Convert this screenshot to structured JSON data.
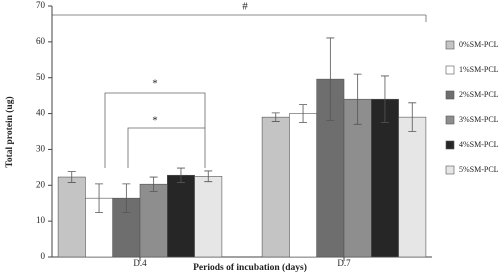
{
  "chart_data": {
    "type": "bar",
    "categories": [
      "D.4",
      "D.7"
    ],
    "x_label": "Periods of incubation (days)",
    "y_label": "Total protein (ug)",
    "ylim": [
      0,
      70
    ],
    "yticks": [
      0,
      10,
      20,
      30,
      40,
      50,
      60,
      70
    ],
    "legend": "right",
    "series": [
      {
        "name": "0%SM-PCL",
        "color": "#c4c4c4",
        "values": [
          22.3,
          39
        ],
        "errors": [
          1.5,
          1.2
        ]
      },
      {
        "name": "1%SM-PCL",
        "color": "#ffffff",
        "values": [
          16.4,
          40
        ],
        "errors": [
          4,
          2.5
        ]
      },
      {
        "name": "2%SM-PCL",
        "color": "#6e6e6e",
        "values": [
          16.4,
          49.6
        ],
        "errors": [
          4,
          11.5
        ]
      },
      {
        "name": "3%SM-PCL",
        "color": "#8e8e8e",
        "values": [
          20.3,
          44
        ],
        "errors": [
          2,
          7
        ]
      },
      {
        "name": "4%SM-PCL",
        "color": "#262626",
        "values": [
          22.8,
          44
        ],
        "errors": [
          2,
          6.5
        ]
      },
      {
        "name": "5%SM-PCL",
        "color": "#e6e6e6",
        "values": [
          22.5,
          39
        ],
        "errors": [
          1.5,
          4
        ]
      }
    ],
    "annotations": [
      "#",
      "*",
      "*"
    ]
  }
}
